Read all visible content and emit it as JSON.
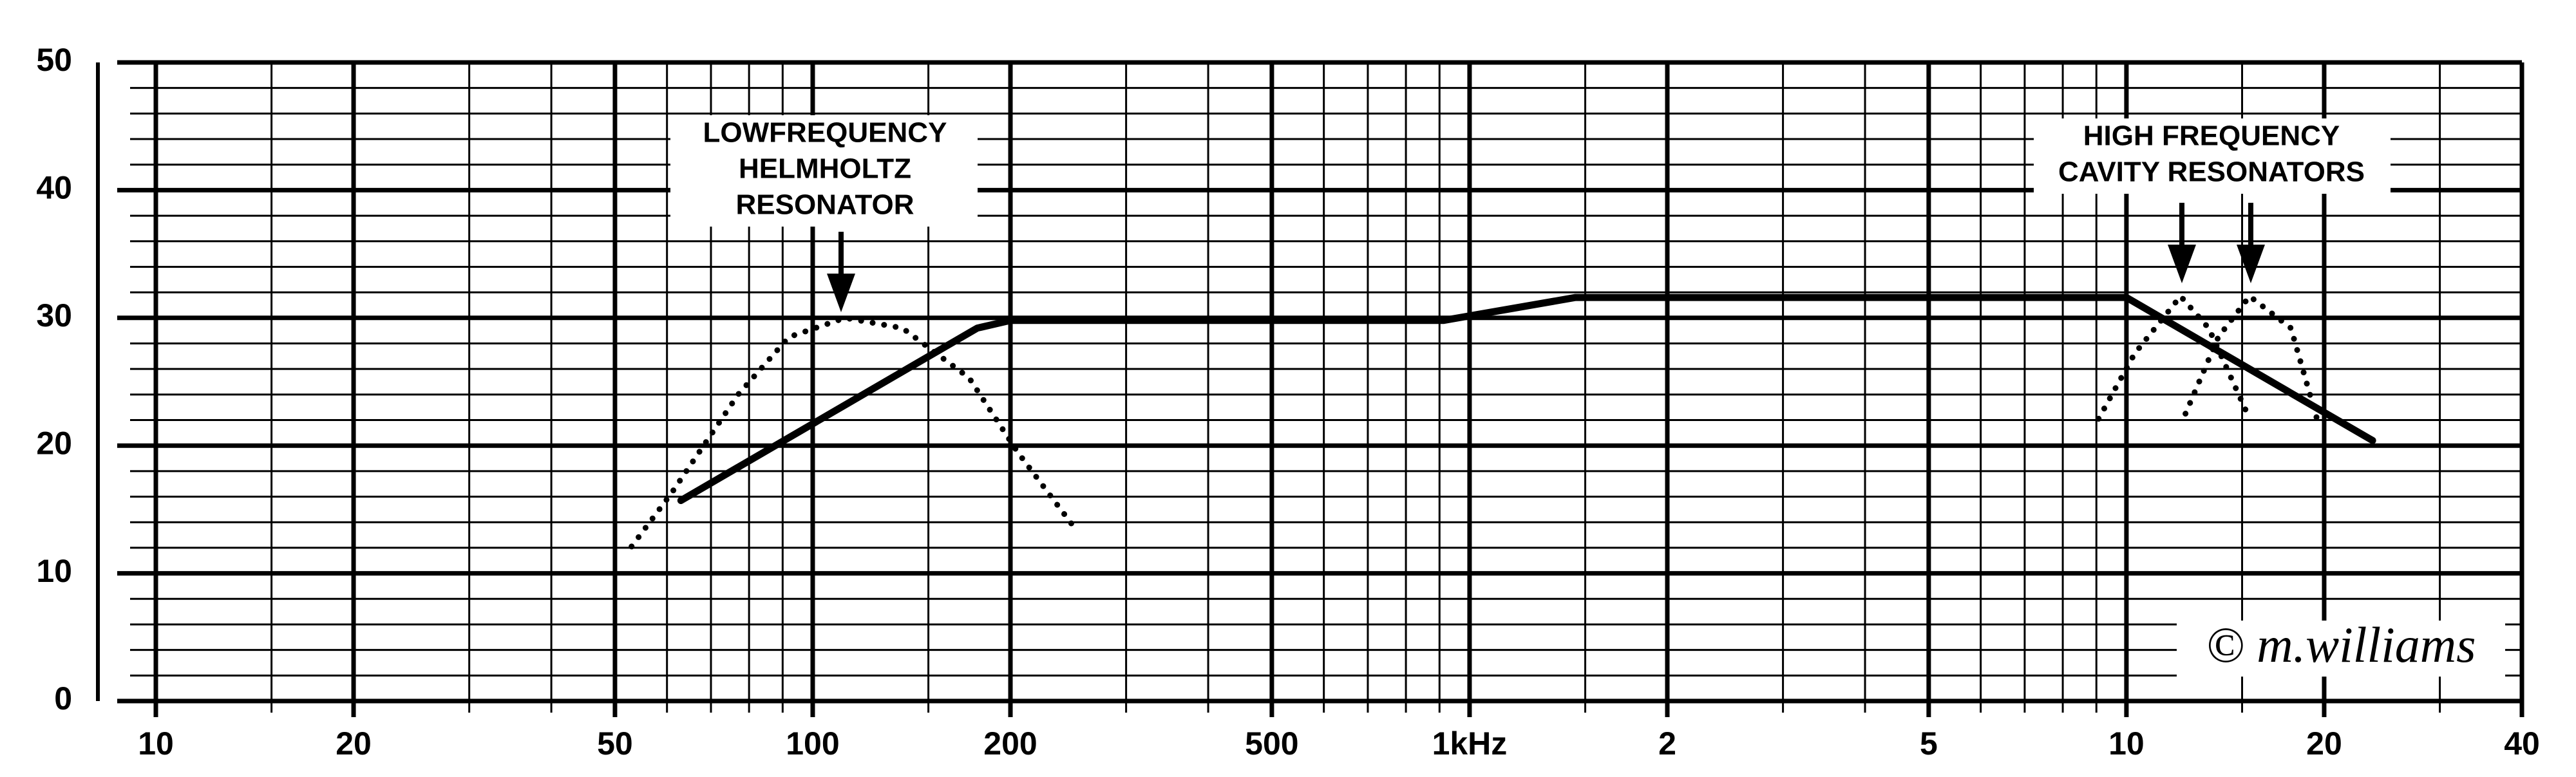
{
  "chart_data": {
    "type": "line",
    "xlog": true,
    "xlim": [
      10,
      40000
    ],
    "ylim": [
      0,
      50
    ],
    "xticks": [
      10,
      20,
      50,
      100,
      200,
      500,
      {
        "value": 1000,
        "label": "1kHz"
      },
      {
        "value": 2000,
        "label": "2"
      },
      {
        "value": 5000,
        "label": "5"
      },
      {
        "value": 10000,
        "label": "10"
      },
      {
        "value": 20000,
        "label": "20"
      },
      {
        "value": 40000,
        "label": "40"
      }
    ],
    "yticks": [
      0,
      10,
      20,
      30,
      40,
      50
    ],
    "minor_xticks": [
      15,
      30,
      40,
      60,
      70,
      80,
      90,
      150,
      300,
      400,
      600,
      700,
      800,
      900,
      1500,
      3000,
      4000,
      6000,
      7000,
      8000,
      9000,
      15000,
      30000
    ],
    "minor_yticks": [
      2,
      4,
      6,
      8,
      12,
      14,
      16,
      18,
      22,
      24,
      26,
      28,
      32,
      34,
      36,
      38,
      42,
      44,
      46,
      48
    ],
    "grid": true,
    "series": [
      {
        "style": "solid",
        "color": "#000000",
        "x": [
          63,
          178,
          200,
          912,
          1450,
          10000,
          23700
        ],
        "values": [
          15.7,
          29.2,
          29.8,
          29.8,
          31.6,
          31.6,
          20.4
        ]
      },
      {
        "style": "dotted",
        "color": "#000000",
        "x": [
          53,
          61,
          77,
          92,
          112,
          137,
          173,
          205,
          251
        ],
        "values": [
          12.1,
          16.3,
          24,
          28.5,
          30,
          29.2,
          25.3,
          19.5,
          13.5
        ]
      },
      {
        "style": "dotted",
        "color": "#000000",
        "x": [
          9070,
          10290,
          12090,
          13340,
          15400
        ],
        "values": [
          22.1,
          27.2,
          31.7,
          29.2,
          22.1
        ]
      },
      {
        "style": "dotted",
        "color": "#000000",
        "x": [
          12300,
          13800,
          15400,
          17800,
          19600
        ],
        "values": [
          22.5,
          28.5,
          31.7,
          29.2,
          21.7
        ]
      }
    ],
    "annotations": [
      {
        "lines": [
          "LOWFREQUENCY",
          "HELMHOLTZ",
          "RESONATOR"
        ]
      },
      {
        "lines": [
          "HIGH FREQUENCY",
          "CAVITY RESONATORS"
        ]
      }
    ],
    "copyright": "© m.williams"
  }
}
